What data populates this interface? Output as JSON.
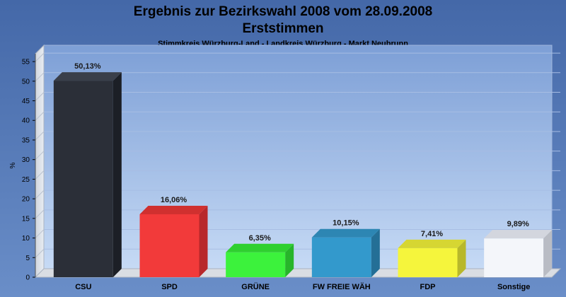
{
  "chart_data": {
    "type": "bar",
    "title": "Ergebnis zur Bezirkswahl 2008 vom 28.09.2008",
    "subtitle": "Erststimmen",
    "caption": "Stimmkreis Würzburg-Land - Landkreis Würzburg - Markt Neubrunn",
    "ylabel": "%",
    "xlabel": "",
    "ylim": [
      0,
      57
    ],
    "yticks": [
      0,
      5,
      10,
      15,
      20,
      25,
      30,
      35,
      40,
      45,
      50,
      55
    ],
    "grid": true,
    "legend": "none",
    "categories": [
      "CSU",
      "SPD",
      "GRÜNE",
      "FW FREIE WÄH",
      "FDP",
      "Sonstige"
    ],
    "values": [
      50.13,
      16.06,
      6.35,
      10.15,
      7.41,
      9.89
    ],
    "value_labels": [
      "50,13%",
      "16,06%",
      "6,35%",
      "10,15%",
      "7,41%",
      "9,89%"
    ],
    "colors": [
      "#2b2f38",
      "#f23a3a",
      "#3cf23c",
      "#3399cc",
      "#f5f53c",
      "#f4f6fa"
    ],
    "side_colors": [
      "#1c1f26",
      "#b8282b",
      "#27b52a",
      "#246f96",
      "#b8b82a",
      "#b9bcc4"
    ],
    "top_colors": [
      "#3a3f4a",
      "#d0302f",
      "#2fd02f",
      "#2d86b3",
      "#d6d632",
      "#d3d6de"
    ]
  }
}
